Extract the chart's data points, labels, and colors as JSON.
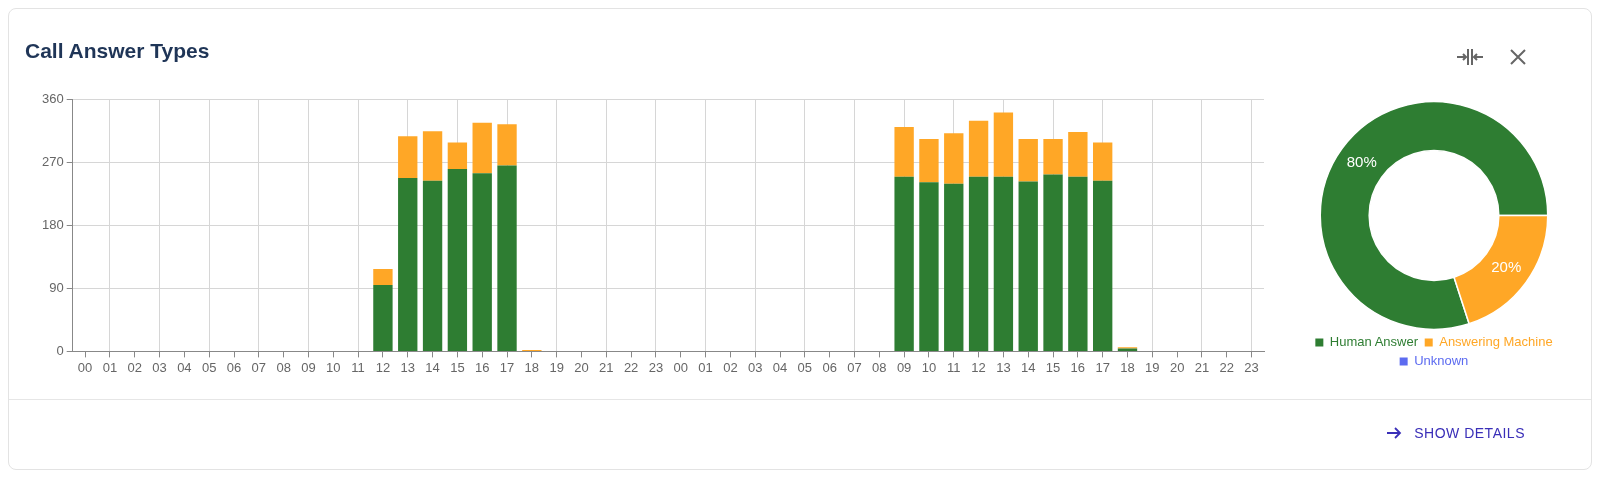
{
  "chart_data": [
    {
      "type": "bar",
      "title": "Call Answer Types",
      "stacked": true,
      "grid": true,
      "legend": false,
      "categories": [
        "00",
        "01",
        "02",
        "03",
        "04",
        "05",
        "06",
        "07",
        "08",
        "09",
        "10",
        "11",
        "12",
        "13",
        "14",
        "15",
        "16",
        "17",
        "18",
        "19",
        "20",
        "21",
        "22",
        "23",
        "00",
        "01",
        "02",
        "03",
        "04",
        "05",
        "06",
        "07",
        "08",
        "09",
        "10",
        "11",
        "12",
        "13",
        "14",
        "15",
        "16",
        "17",
        "18",
        "19",
        "20",
        "21",
        "22",
        "23"
      ],
      "ylim": [
        0,
        360
      ],
      "yticks": [
        0,
        90,
        180,
        270,
        360
      ],
      "series": [
        {
          "color": "#2e7d32",
          "values": [
            0,
            0,
            0,
            0,
            0,
            0,
            0,
            0,
            0,
            0,
            0,
            0,
            95,
            248,
            244,
            261,
            255,
            266,
            0,
            0,
            0,
            0,
            0,
            0,
            0,
            0,
            0,
            0,
            0,
            0,
            0,
            0,
            0,
            250,
            242,
            240,
            250,
            250,
            243,
            253,
            250,
            244,
            4,
            0,
            0,
            0,
            0,
            0
          ]
        },
        {
          "color": "#ffa726",
          "values": [
            0,
            0,
            0,
            0,
            0,
            0,
            0,
            0,
            0,
            0,
            0,
            0,
            23,
            60,
            71,
            38,
            72,
            59,
            2,
            0,
            0,
            0,
            0,
            0,
            0,
            0,
            0,
            0,
            0,
            0,
            0,
            0,
            0,
            71,
            62,
            72,
            80,
            92,
            61,
            51,
            64,
            55,
            2,
            0,
            0,
            0,
            0,
            0
          ]
        }
      ]
    },
    {
      "type": "donut",
      "legend": "bottom",
      "categories": [
        "Human Answer",
        "Answering Machine",
        "Unknown"
      ],
      "values": [
        80,
        20,
        0
      ],
      "colors": [
        "#2e7d32",
        "#ffa726",
        "#5c6bf0"
      ],
      "value_labels": [
        "80%",
        "20%",
        null
      ],
      "annotations": [
        "SHOW DETAILS"
      ]
    }
  ]
}
